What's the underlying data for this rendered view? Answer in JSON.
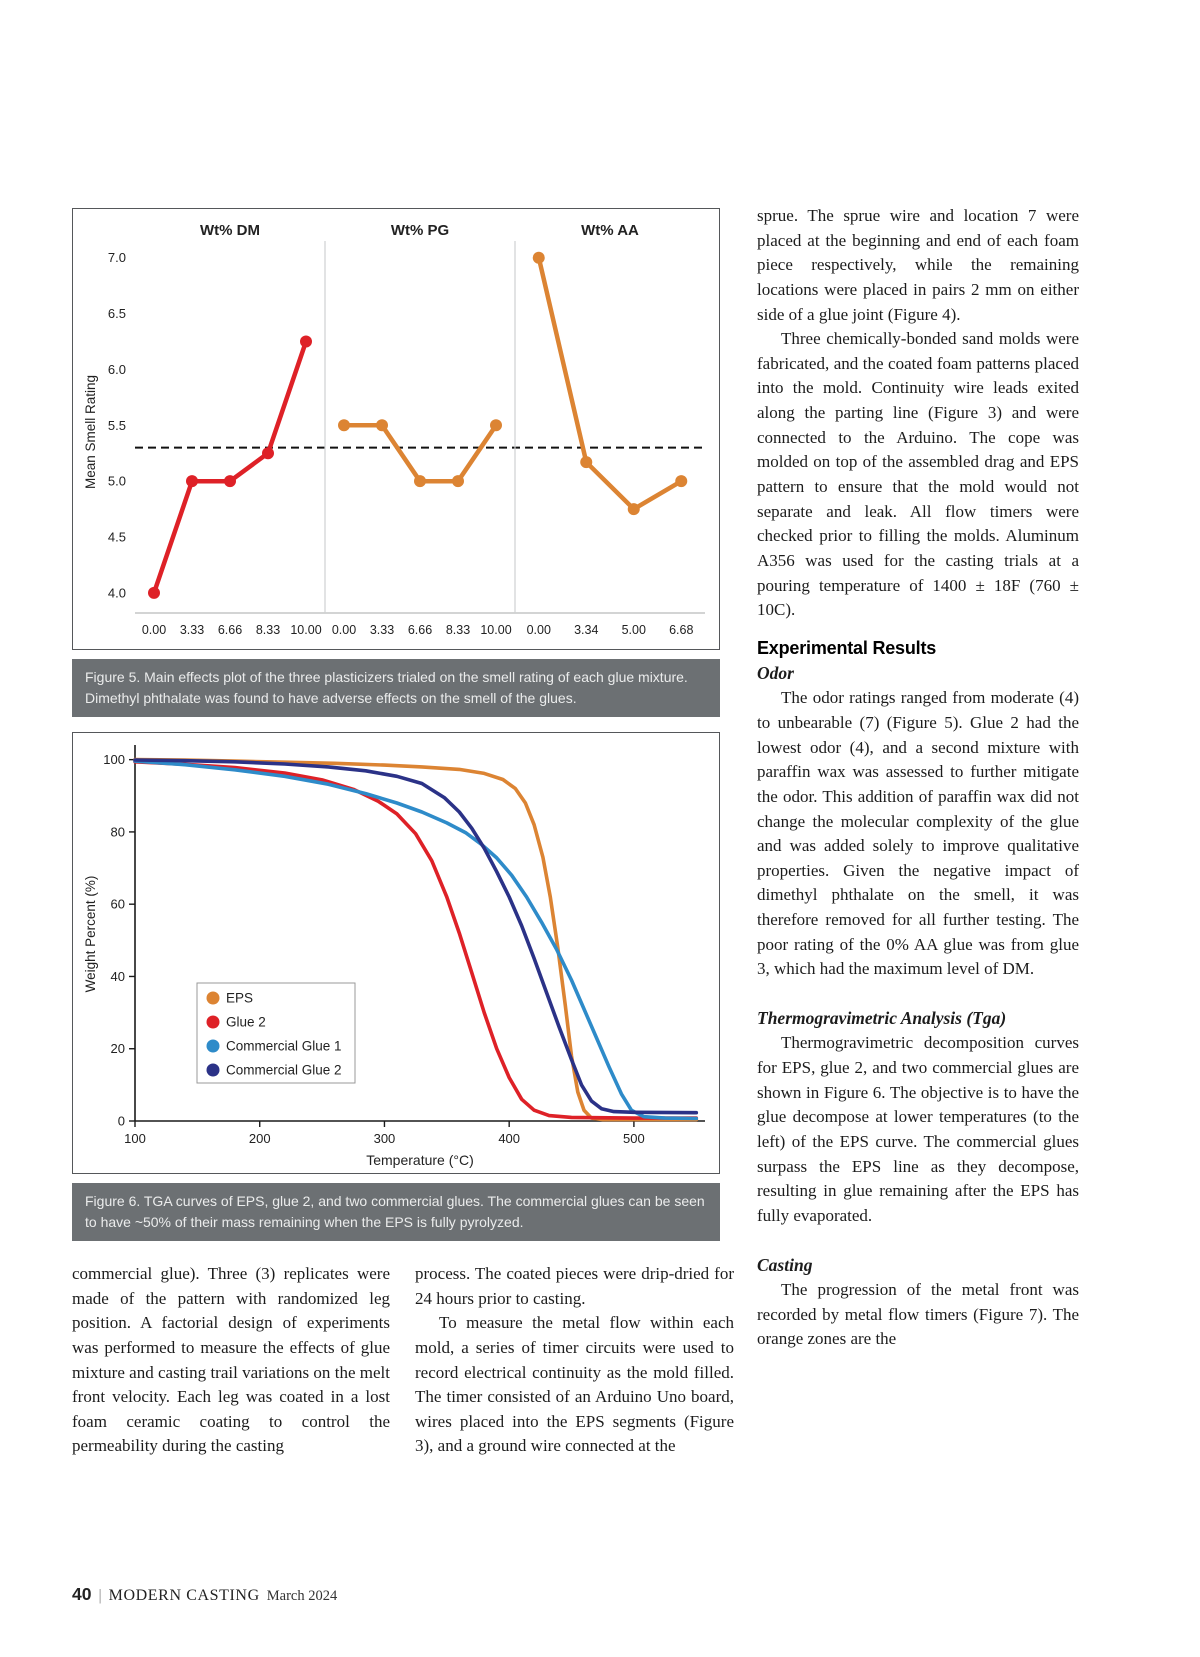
{
  "figure5": {
    "caption": "Figure 5. Main effects plot of the three plasticizers trialed on the smell rating of each glue mixture. Dimethyl phthalate was found to have adverse effects on the smell of the glues."
  },
  "figure6": {
    "caption": "Figure 6. TGA curves of EPS, glue 2, and two commercial glues. The commercial glues can be seen to have ~50% of their mass remaining when the EPS is fully pyrolyzed."
  },
  "right_column": {
    "para1": "sprue. The sprue wire and location 7 were placed at the beginning and end of each foam piece respectively, while the remaining locations were placed in pairs 2 mm on either side of a glue joint (Figure 4).",
    "para2": "Three chemically-bonded sand molds were fabricated, and the coated foam patterns placed into the mold. Continuity wire leads exited along the parting line (Figure 3) and were connected to the Arduino. The cope was molded on top of the assembled drag and EPS pattern to ensure that the mold would not separate and leak. All flow timers were checked prior to filling the molds. Aluminum A356 was used for the casting trials at a pouring temperature of 1400 ± 18F (760 ± 10C).",
    "heading_results": "Experimental Results",
    "subheading_odor": "Odor",
    "para_odor": "The odor ratings ranged from moderate (4) to unbearable (7) (Figure 5). Glue 2 had the lowest odor (4), and a second mixture with paraffin wax was assessed to further mitigate the odor. This addition of paraffin wax did not change the molecular complexity of the glue and was added solely to improve qualitative properties. Given the negative impact of dimethyl phthalate on the smell, it was therefore removed for all further testing. The poor rating of the 0% AA glue was from glue 3, which had the maximum level of DM.",
    "subheading_tga": "Thermogravimetric Analysis (Tga)",
    "para_tga": "Thermogravimetric decomposition curves for EPS, glue 2, and two commercial glues are shown in Figure 6. The objective is to have the glue decompose at lower temperatures (to the left) of the EPS curve. The commercial glues surpass the EPS line as they decompose, resulting in glue remaining after the EPS has fully evaporated.",
    "subheading_casting": "Casting",
    "para_casting": "The progression of the metal front was recorded by metal flow timers (Figure 7). The orange zones are the"
  },
  "bottom_columns": {
    "left_para": "commercial glue). Three (3) replicates were made of the pattern with randomized leg position. A factorial design of experiments was performed to measure the effects of glue mixture and casting trail variations on the melt front velocity. Each leg was coated in a lost foam ceramic coating to control the permeability during the casting",
    "middle_para1": "process. The coated pieces were drip-dried for 24 hours prior to casting.",
    "middle_para2": "To measure the metal flow within each mold, a series of timer circuits were used to record electrical continuity as the mold filled. The timer consisted of an Arduino Uno board, wires placed into the EPS segments (Figure 3), and a ground wire connected at the"
  },
  "footer": {
    "page_number": "40",
    "separator": "|",
    "magazine": "MODERN CASTING",
    "issue": "March 2024"
  },
  "chart_data": [
    {
      "type": "line",
      "title": "Main effects plot of plasticizers on smell rating",
      "ylabel": "Mean Smell Rating",
      "ylim": [
        3.82,
        7.06
      ],
      "yticks": [
        4.0,
        4.5,
        5.0,
        5.5,
        6.0,
        6.5,
        7.0
      ],
      "reference_line": 5.3,
      "grid": false,
      "panels": [
        {
          "title": "Wt% DM",
          "color": "#de2127",
          "x_labels": [
            "0.00",
            "3.33",
            "6.66",
            "8.33",
            "10.00"
          ],
          "values": [
            4.0,
            5.0,
            5.0,
            5.25,
            6.25
          ]
        },
        {
          "title": "Wt% PG",
          "color": "#dc8433",
          "x_labels": [
            "0.00",
            "3.33",
            "6.66",
            "8.33",
            "10.00"
          ],
          "values": [
            5.5,
            5.5,
            5.0,
            5.0,
            5.5
          ]
        },
        {
          "title": "Wt% AA",
          "color": "#dc8433",
          "x_labels": [
            "0.00",
            "3.34",
            "5.00",
            "6.68"
          ],
          "values": [
            7.0,
            5.17,
            4.75,
            5.0
          ]
        }
      ]
    },
    {
      "type": "line",
      "title": "TGA decomposition curves",
      "xlabel": "Temperature (°C)",
      "ylabel": "Weight Percent (%)",
      "xlim": [
        100,
        557
      ],
      "ylim": [
        0,
        103.5
      ],
      "xticks": [
        100,
        200,
        300,
        400,
        500
      ],
      "yticks": [
        0,
        20,
        40,
        60,
        80,
        100
      ],
      "legend_position": "center-left",
      "series": [
        {
          "name": "EPS",
          "color": "#dc8433",
          "points": [
            [
              100,
              100
            ],
            [
              140,
              99.9
            ],
            [
              180,
              99.6
            ],
            [
              220,
              99.3
            ],
            [
              260,
              99.0
            ],
            [
              300,
              98.5
            ],
            [
              330,
              98.0
            ],
            [
              360,
              97.3
            ],
            [
              380,
              96.2
            ],
            [
              395,
              94.5
            ],
            [
              405,
              92
            ],
            [
              413,
              88
            ],
            [
              420,
              82
            ],
            [
              427,
              73
            ],
            [
              433,
              62
            ],
            [
              439,
              48
            ],
            [
              445,
              32
            ],
            [
              450,
              18
            ],
            [
              455,
              8
            ],
            [
              460,
              3
            ],
            [
              466,
              0.8
            ],
            [
              475,
              0.4
            ],
            [
              550,
              0.4
            ]
          ]
        },
        {
          "name": "Glue 2",
          "color": "#de2127",
          "points": [
            [
              100,
              99.4
            ],
            [
              140,
              98.7
            ],
            [
              180,
              97.8
            ],
            [
              220,
              96.3
            ],
            [
              250,
              94.4
            ],
            [
              275,
              91.8
            ],
            [
              295,
              88.5
            ],
            [
              310,
              85
            ],
            [
              325,
              79.5
            ],
            [
              338,
              72
            ],
            [
              350,
              62
            ],
            [
              360,
              52
            ],
            [
              370,
              41
            ],
            [
              380,
              30
            ],
            [
              390,
              20
            ],
            [
              400,
              12
            ],
            [
              410,
              6
            ],
            [
              420,
              3
            ],
            [
              432,
              1.5
            ],
            [
              450,
              1
            ],
            [
              500,
              0.8
            ],
            [
              550,
              0.8
            ]
          ]
        },
        {
          "name": "Commercial Glue 1",
          "color": "#2e8bc9",
          "points": [
            [
              100,
              99.6
            ],
            [
              140,
              98.6
            ],
            [
              180,
              97.2
            ],
            [
              220,
              95.4
            ],
            [
              255,
              93.2
            ],
            [
              285,
              90.6
            ],
            [
              310,
              88
            ],
            [
              330,
              85.5
            ],
            [
              350,
              82.5
            ],
            [
              365,
              79.8
            ],
            [
              378,
              76.5
            ],
            [
              390,
              72.8
            ],
            [
              402,
              68
            ],
            [
              414,
              62
            ],
            [
              426,
              55
            ],
            [
              438,
              47.5
            ],
            [
              450,
              39
            ],
            [
              460,
              31
            ],
            [
              470,
              23
            ],
            [
              480,
              15
            ],
            [
              490,
              7.5
            ],
            [
              498,
              3
            ],
            [
              508,
              1.2
            ],
            [
              525,
              0.8
            ],
            [
              550,
              0.7
            ]
          ]
        },
        {
          "name": "Commercial Glue 2",
          "color": "#2b3287",
          "points": [
            [
              100,
              99.9
            ],
            [
              140,
              99.7
            ],
            [
              180,
              99.4
            ],
            [
              220,
              98.8
            ],
            [
              255,
              98
            ],
            [
              285,
              96.9
            ],
            [
              310,
              95.4
            ],
            [
              330,
              93.4
            ],
            [
              348,
              89.5
            ],
            [
              360,
              85.5
            ],
            [
              370,
              81
            ],
            [
              380,
              75.5
            ],
            [
              390,
              69
            ],
            [
              400,
              62
            ],
            [
              410,
              54
            ],
            [
              420,
              45
            ],
            [
              430,
              35.5
            ],
            [
              440,
              26
            ],
            [
              450,
              17
            ],
            [
              458,
              10
            ],
            [
              466,
              5.5
            ],
            [
              474,
              3.4
            ],
            [
              484,
              2.6
            ],
            [
              500,
              2.4
            ],
            [
              550,
              2.3
            ]
          ]
        }
      ]
    }
  ]
}
